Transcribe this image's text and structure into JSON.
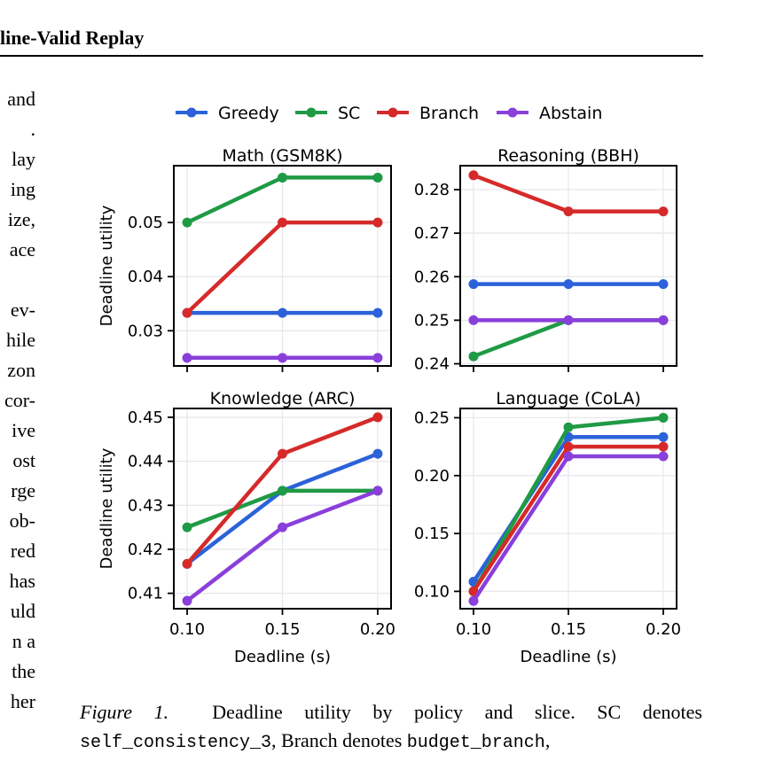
{
  "header": {
    "running_title": "line-Valid Replay"
  },
  "left_column_fragments": [
    "and",
    ".",
    "lay",
    "ing",
    "ize,",
    "ace",
    "",
    "ev-",
    "hile",
    "zon",
    "cor-",
    "ive",
    "ost",
    "rge",
    "ob-",
    "red",
    "has",
    "uld",
    "n a",
    "the",
    "her"
  ],
  "figure": {
    "legend": [
      "Greedy",
      "SC",
      "Branch",
      "Abstain"
    ],
    "colors": {
      "Greedy": "#2b62d9",
      "SC": "#1f9a45",
      "Branch": "#d62a2a",
      "Abstain": "#8a3fdb",
      "grid": "#e6e6ec",
      "axis": "#000000"
    },
    "caption": {
      "label": "Figure 1.",
      "text_a": "Deadline utility by policy and slice.  SC denotes",
      "mono_a": "self_consistency_3",
      "text_b": ", Branch denotes",
      "mono_b": "budget_branch",
      "text_c": ","
    }
  },
  "chart_data": [
    {
      "type": "line",
      "title": "Math (GSM8K)",
      "xlabel": "",
      "ylabel": "Deadline utility",
      "x": [
        0.1,
        0.15,
        0.2
      ],
      "xticks": [],
      "yticks": [
        0.03,
        0.04,
        0.05
      ],
      "ylim": [
        0.0235,
        0.0605
      ],
      "grid": true,
      "series": [
        {
          "name": "Greedy",
          "values": [
            0.0333,
            0.0333,
            0.0333
          ]
        },
        {
          "name": "SC",
          "values": [
            0.05,
            0.0583,
            0.0583
          ]
        },
        {
          "name": "Branch",
          "values": [
            0.0333,
            0.05,
            0.05
          ]
        },
        {
          "name": "Abstain",
          "values": [
            0.025,
            0.025,
            0.025
          ]
        }
      ]
    },
    {
      "type": "line",
      "title": "Reasoning (BBH)",
      "xlabel": "",
      "ylabel": "",
      "x": [
        0.1,
        0.15,
        0.2
      ],
      "xticks": [],
      "yticks": [
        0.24,
        0.25,
        0.26,
        0.27,
        0.28
      ],
      "ylim": [
        0.2395,
        0.2855
      ],
      "grid": true,
      "series": [
        {
          "name": "Greedy",
          "values": [
            0.2583,
            0.2583,
            0.2583
          ]
        },
        {
          "name": "SC",
          "values": [
            0.2417,
            0.25,
            0.25
          ]
        },
        {
          "name": "Branch",
          "values": [
            0.2833,
            0.275,
            0.275
          ]
        },
        {
          "name": "Abstain",
          "values": [
            0.25,
            0.25,
            0.25
          ]
        }
      ]
    },
    {
      "type": "line",
      "title": "Knowledge (ARC)",
      "xlabel": "Deadline (s)",
      "ylabel": "Deadline utility",
      "x": [
        0.1,
        0.15,
        0.2
      ],
      "xticks": [
        "0.10",
        "0.15",
        "0.20"
      ],
      "yticks": [
        0.41,
        0.42,
        0.43,
        0.44,
        0.45
      ],
      "ylim": [
        0.4065,
        0.452
      ],
      "grid": true,
      "series": [
        {
          "name": "Greedy",
          "values": [
            0.4167,
            0.4333,
            0.4417
          ]
        },
        {
          "name": "SC",
          "values": [
            0.425,
            0.4333,
            0.4333
          ]
        },
        {
          "name": "Branch",
          "values": [
            0.4167,
            0.4417,
            0.45
          ]
        },
        {
          "name": "Abstain",
          "values": [
            0.4083,
            0.425,
            0.4333
          ]
        }
      ]
    },
    {
      "type": "line",
      "title": "Language (CoLA)",
      "xlabel": "Deadline (s)",
      "ylabel": "",
      "x": [
        0.1,
        0.15,
        0.2
      ],
      "xticks": [
        "0.10",
        "0.15",
        "0.20"
      ],
      "yticks": [
        0.1,
        0.15,
        0.2,
        0.25
      ],
      "ylim": [
        0.085,
        0.258
      ],
      "grid": true,
      "series": [
        {
          "name": "Greedy",
          "values": [
            0.1083,
            0.2333,
            0.2333
          ]
        },
        {
          "name": "SC",
          "values": [
            0.1,
            0.2417,
            0.25
          ]
        },
        {
          "name": "Branch",
          "values": [
            0.1,
            0.225,
            0.225
          ]
        },
        {
          "name": "Abstain",
          "values": [
            0.0917,
            0.2167,
            0.2167
          ]
        }
      ]
    }
  ]
}
